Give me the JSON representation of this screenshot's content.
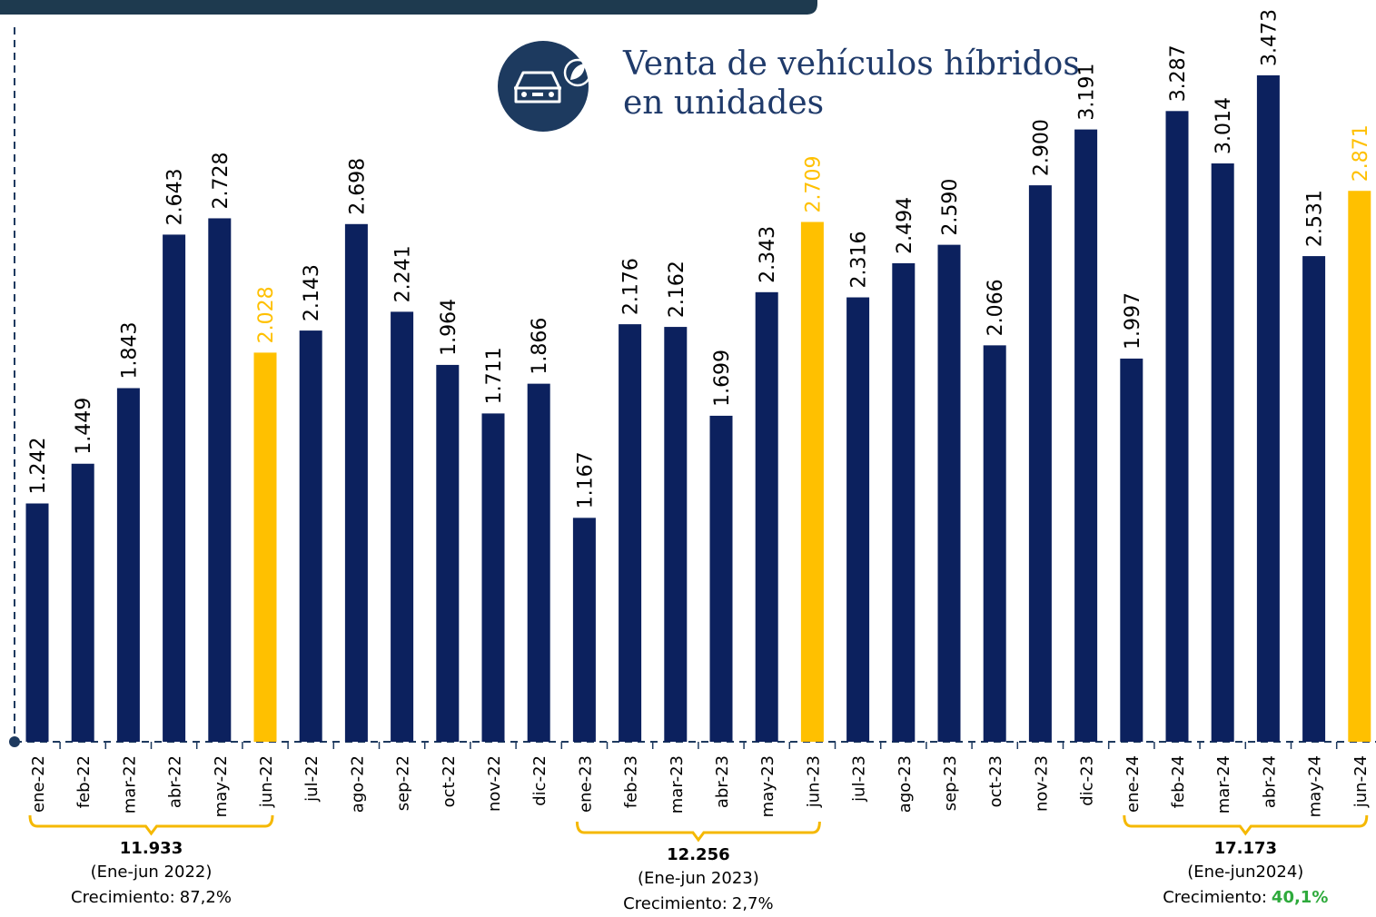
{
  "chart_data": {
    "type": "bar",
    "title": [
      "Venta de vehículos híbridos",
      "en unidades"
    ],
    "categories": [
      "ene-22",
      "feb-22",
      "mar-22",
      "abr-22",
      "may-22",
      "jun-22",
      "jul-22",
      "ago-22",
      "sep-22",
      "oct-22",
      "nov-22",
      "dic-22",
      "ene-23",
      "feb-23",
      "mar-23",
      "abr-23",
      "may-23",
      "jun-23",
      "jul-23",
      "ago-23",
      "sep-23",
      "oct-23",
      "nov-23",
      "dic-23",
      "ene-24",
      "feb-24",
      "mar-24",
      "abr-24",
      "may-24",
      "jun-24"
    ],
    "values": [
      1242,
      1449,
      1843,
      2643,
      2728,
      2028,
      2143,
      2698,
      2241,
      1964,
      1711,
      1866,
      1167,
      2176,
      2162,
      1699,
      2343,
      2709,
      2316,
      2494,
      2590,
      2066,
      2900,
      3191,
      1997,
      3287,
      3014,
      3473,
      2531,
      2871
    ],
    "value_labels": [
      "1.242",
      "1.449",
      "1.843",
      "2.643",
      "2.728",
      "2.028",
      "2.143",
      "2.698",
      "2.241",
      "1.964",
      "1.711",
      "1.866",
      "1.167",
      "2.176",
      "2.162",
      "1.699",
      "2.343",
      "2.709",
      "2.316",
      "2.494",
      "2.590",
      "2.066",
      "2.900",
      "3.191",
      "1.997",
      "3.287",
      "3.014",
      "3.473",
      "2.531",
      "2.871"
    ],
    "colors": [
      "#0c215e",
      "#0c215e",
      "#0c215e",
      "#0c215e",
      "#0c215e",
      "#ffc000",
      "#0c215e",
      "#0c215e",
      "#0c215e",
      "#0c215e",
      "#0c215e",
      "#0c215e",
      "#0c215e",
      "#0c215e",
      "#0c215e",
      "#0c215e",
      "#0c215e",
      "#ffc000",
      "#0c215e",
      "#0c215e",
      "#0c215e",
      "#0c215e",
      "#0c215e",
      "#0c215e",
      "#0c215e",
      "#0c215e",
      "#0c215e",
      "#0c215e",
      "#0c215e",
      "#ffc000"
    ],
    "summaries": [
      {
        "total": 11933,
        "total_label": "11.933",
        "period": "(Ene-jun 2022)",
        "growth_text": "Crecimiento:",
        "growth": 87.2,
        "growth_label": "87,2%",
        "growth_color": "#000000"
      },
      {
        "total": 12256,
        "total_label": "12.256",
        "period": "(Ene-jun 2023)",
        "growth_text": "Crecimiento:",
        "growth": 2.7,
        "growth_label": "2,7%",
        "growth_color": "#000000"
      },
      {
        "total": 17173,
        "total_label": "17.173",
        "period": "(Ene-jun2024)",
        "growth_text": "Crecimiento:",
        "growth": 40.1,
        "growth_label": "40,1%",
        "growth_color": "#2eaa3c"
      }
    ]
  }
}
